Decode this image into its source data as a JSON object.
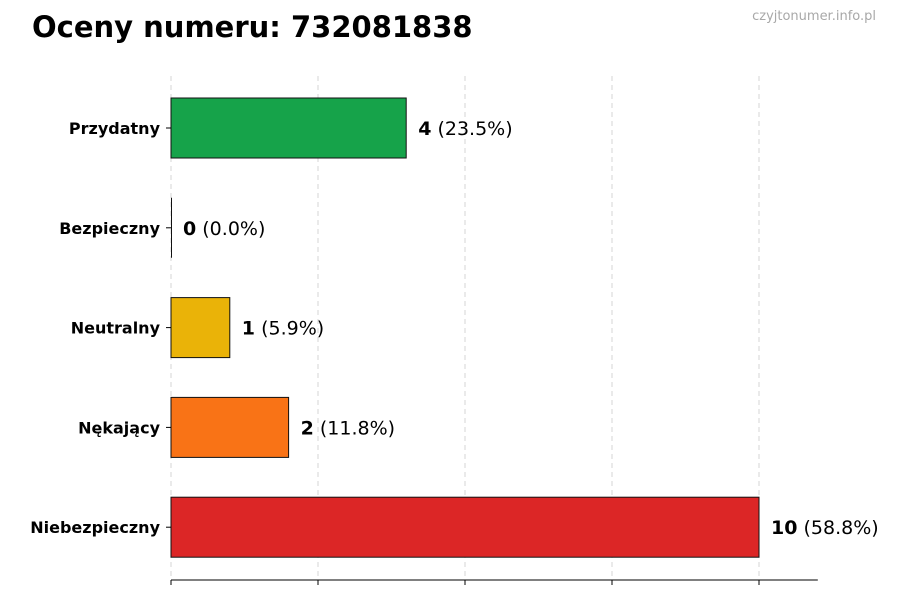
{
  "title": "Oceny numeru: 732081838",
  "watermark": "czyjtonumer.info.pl",
  "chart_data": {
    "type": "bar",
    "orientation": "horizontal",
    "categories": [
      "Przydatny",
      "Bezpieczny",
      "Neutralny",
      "Nękający",
      "Niebezpieczny"
    ],
    "values": [
      4,
      0,
      1,
      2,
      10
    ],
    "value_labels": [
      "4",
      "0",
      "1",
      "2",
      "10"
    ],
    "percent_labels": [
      "(23.5%)",
      "(0.0%)",
      "(5.9%)",
      "(11.8%)",
      "(58.8%)"
    ],
    "colors": [
      "#16a34a",
      "#6b7280",
      "#eab308",
      "#f97316",
      "#dc2626"
    ],
    "xlim": [
      0,
      11
    ],
    "grid": true,
    "xlabel": "",
    "ylabel": ""
  }
}
